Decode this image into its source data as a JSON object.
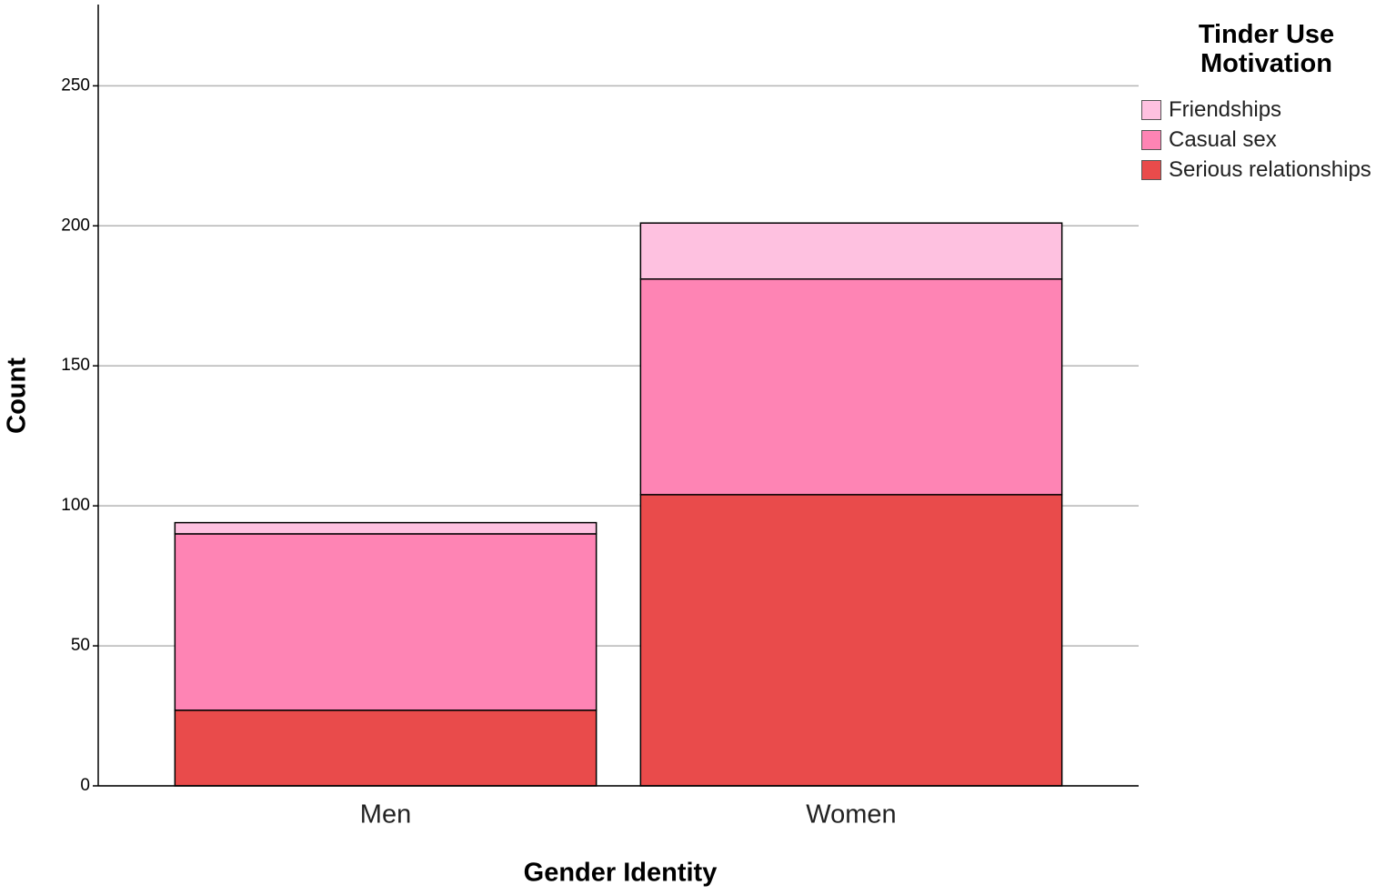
{
  "chart_data": {
    "type": "stacked_bar",
    "x_label": "Gender Identity",
    "y_label": "Count",
    "legend_title": "Tinder Use Motivation",
    "categories": [
      "Men",
      "Women"
    ],
    "series": [
      {
        "name": "Serious relationships",
        "color": "#e94b4b",
        "values": [
          27,
          104
        ]
      },
      {
        "name": "Casual sex",
        "color": "#fe84b4",
        "values": [
          63,
          77
        ]
      },
      {
        "name": "Friendships",
        "color": "#fec1e0",
        "values": [
          4,
          20
        ]
      }
    ],
    "ylim": [
      0,
      280
    ],
    "yticks": [
      0,
      50,
      100,
      150,
      200,
      250
    ],
    "grid": true,
    "legend": "right"
  }
}
